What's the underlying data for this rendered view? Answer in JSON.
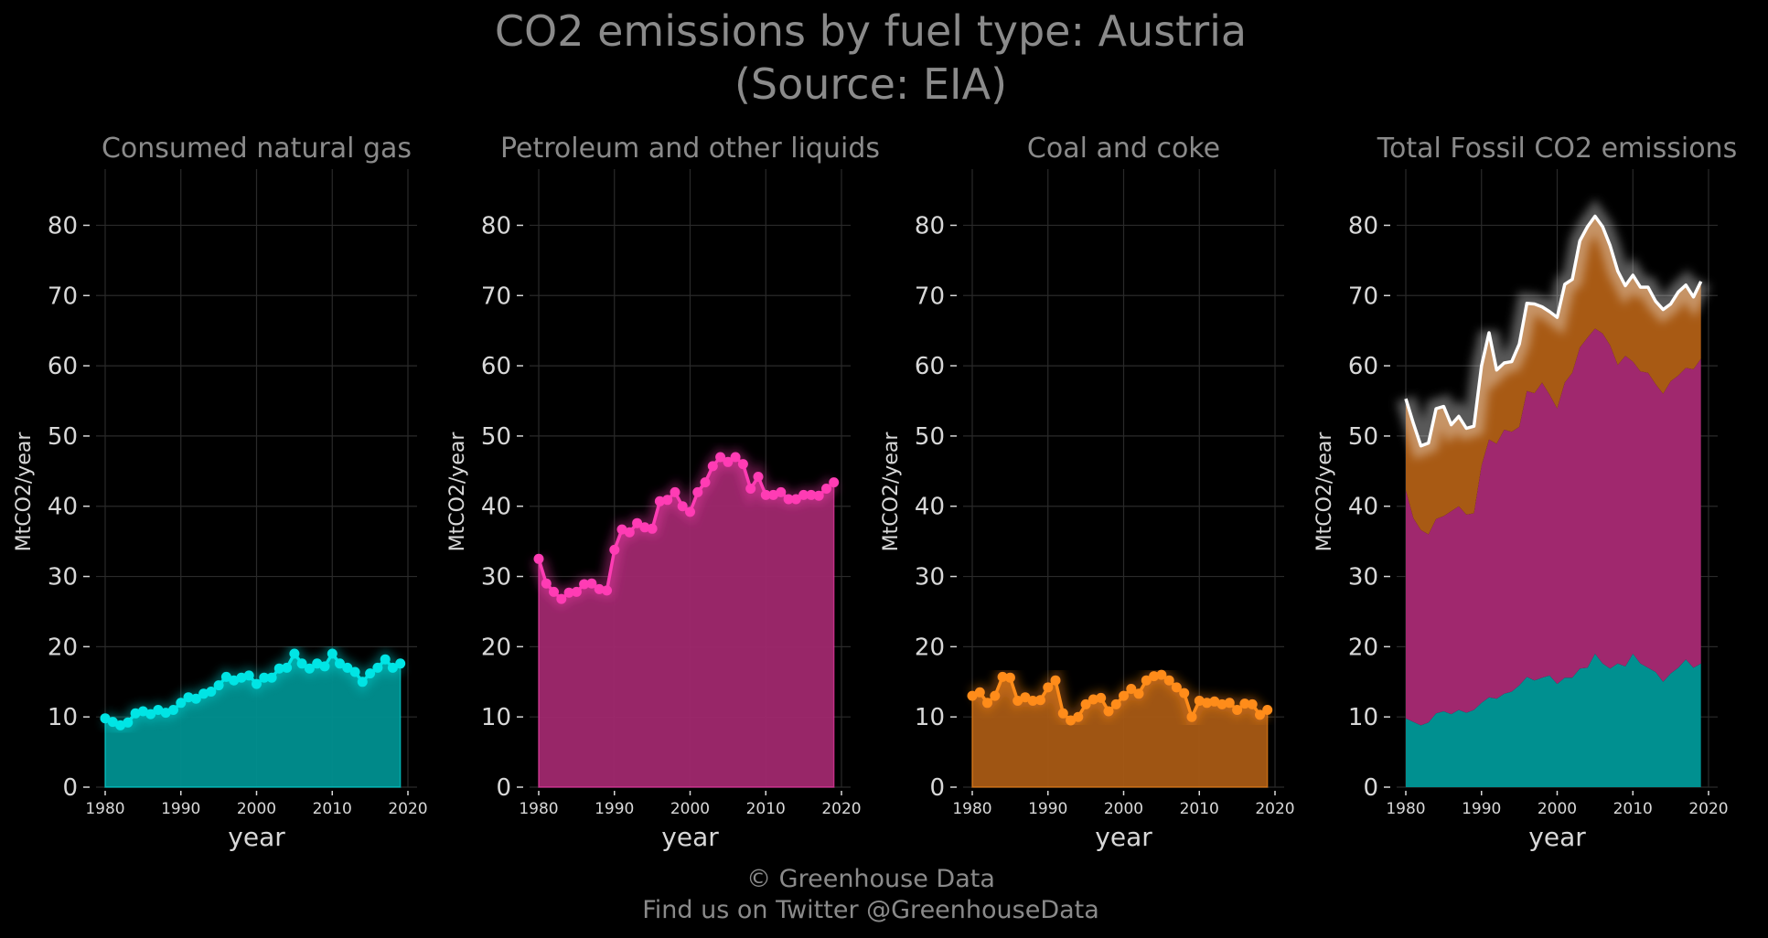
{
  "title_line1": "CO2 emissions by fuel type: Austria",
  "title_line2": "(Source: EIA)",
  "footer_line1": "© Greenhouse Data",
  "footer_line2": "Find us on Twitter @GreenhouseData",
  "colors": {
    "background": "#000000",
    "gas": "#00e5e5",
    "gas_fill": "#009090",
    "petroleum": "#ff3cb4",
    "petroleum_fill": "#a0286e",
    "coal": "#ff8c1a",
    "coal_fill": "#a85a14",
    "total_line": "#ffffff"
  },
  "chart_data": [
    {
      "type": "area",
      "title": "Consumed natural gas",
      "xlabel": "year",
      "ylabel": "MtCO2/year",
      "xlim": [
        1980,
        2020
      ],
      "ylim": [
        0,
        88
      ],
      "x_ticks": [
        1980,
        1990,
        2000,
        2010,
        2020
      ],
      "y_ticks": [
        0,
        10,
        20,
        30,
        40,
        50,
        60,
        70,
        80
      ],
      "grid": true,
      "series": [
        {
          "x": [
            1980,
            1981,
            1982,
            1983,
            1984,
            1985,
            1986,
            1987,
            1988,
            1989,
            1990,
            1991,
            1992,
            1993,
            1994,
            1995,
            1996,
            1997,
            1998,
            1999,
            2000,
            2001,
            2002,
            2003,
            2004,
            2005,
            2006,
            2007,
            2008,
            2009,
            2010,
            2011,
            2012,
            2013,
            2014,
            2015,
            2016,
            2017,
            2018,
            2019
          ],
          "values": [
            9.8,
            9.3,
            8.8,
            9.2,
            10.5,
            10.8,
            10.4,
            11.0,
            10.6,
            11.0,
            12.0,
            12.8,
            12.6,
            13.3,
            13.6,
            14.5,
            15.7,
            15.2,
            15.6,
            15.9,
            14.7,
            15.6,
            15.6,
            16.9,
            17.0,
            19.0,
            17.6,
            16.9,
            17.6,
            17.2,
            19.0,
            17.6,
            17.0,
            16.4,
            15.0,
            16.2,
            17.0,
            18.2,
            17.0,
            17.6
          ]
        }
      ]
    },
    {
      "type": "area",
      "title": "Petroleum and other liquids",
      "xlabel": "year",
      "ylabel": "MtCO2/year",
      "xlim": [
        1980,
        2020
      ],
      "ylim": [
        0,
        88
      ],
      "x_ticks": [
        1980,
        1990,
        2000,
        2010,
        2020
      ],
      "y_ticks": [
        0,
        10,
        20,
        30,
        40,
        50,
        60,
        70,
        80
      ],
      "grid": true,
      "series": [
        {
          "x": [
            1980,
            1981,
            1982,
            1983,
            1984,
            1985,
            1986,
            1987,
            1988,
            1989,
            1990,
            1991,
            1992,
            1993,
            1994,
            1995,
            1996,
            1997,
            1998,
            1999,
            2000,
            2001,
            2002,
            2003,
            2004,
            2005,
            2006,
            2007,
            2008,
            2009,
            2010,
            2011,
            2012,
            2013,
            2014,
            2015,
            2016,
            2017,
            2018,
            2019
          ],
          "values": [
            32.5,
            29.0,
            27.8,
            26.8,
            27.7,
            27.8,
            28.9,
            29.0,
            28.2,
            28.0,
            33.8,
            36.7,
            36.3,
            37.6,
            37.0,
            36.8,
            40.7,
            40.9,
            42.0,
            40.0,
            39.2,
            42.0,
            43.4,
            45.7,
            47.0,
            46.3,
            47.0,
            46.0,
            42.5,
            44.2,
            41.6,
            41.6,
            42.0,
            41.0,
            41.0,
            41.6,
            41.6,
            41.5,
            42.5,
            43.4
          ]
        }
      ]
    },
    {
      "type": "area",
      "title": "Coal and coke",
      "xlabel": "year",
      "ylabel": "MtCO2/year",
      "xlim": [
        1980,
        2020
      ],
      "ylim": [
        0,
        88
      ],
      "x_ticks": [
        1980,
        1990,
        2000,
        2010,
        2020
      ],
      "y_ticks": [
        0,
        10,
        20,
        30,
        40,
        50,
        60,
        70,
        80
      ],
      "grid": true,
      "series": [
        {
          "x": [
            1980,
            1981,
            1982,
            1983,
            1984,
            1985,
            1986,
            1987,
            1988,
            1989,
            1990,
            1991,
            1992,
            1993,
            1994,
            1995,
            1996,
            1997,
            1998,
            1999,
            2000,
            2001,
            2002,
            2003,
            2004,
            2005,
            2006,
            2007,
            2008,
            2009,
            2010,
            2011,
            2012,
            2013,
            2014,
            2015,
            2016,
            2017,
            2018,
            2019
          ],
          "values": [
            13.0,
            13.5,
            12.0,
            13.0,
            15.7,
            15.6,
            12.3,
            12.8,
            12.3,
            12.4,
            14.2,
            15.2,
            10.5,
            9.5,
            10.0,
            11.8,
            12.5,
            12.7,
            10.8,
            11.8,
            13.0,
            14.0,
            13.3,
            15.2,
            15.8,
            16.0,
            15.2,
            14.2,
            13.4,
            10.0,
            12.3,
            12.0,
            12.2,
            11.8,
            12.0,
            11.0,
            11.9,
            11.8,
            10.3,
            11.0
          ]
        }
      ]
    },
    {
      "type": "area",
      "title": "Total Fossil CO2 emissions",
      "xlabel": "year",
      "ylabel": "MtCO2/year",
      "xlim": [
        1980,
        2020
      ],
      "ylim": [
        0,
        88
      ],
      "x_ticks": [
        1980,
        1990,
        2000,
        2010,
        2020
      ],
      "y_ticks": [
        0,
        10,
        20,
        30,
        40,
        50,
        60,
        70,
        80
      ],
      "grid": true,
      "stacked": true,
      "x": [
        1980,
        1981,
        1982,
        1983,
        1984,
        1985,
        1986,
        1987,
        1988,
        1989,
        1990,
        1991,
        1992,
        1993,
        1994,
        1995,
        1996,
        1997,
        1998,
        1999,
        2000,
        2001,
        2002,
        2003,
        2004,
        2005,
        2006,
        2007,
        2008,
        2009,
        2010,
        2011,
        2012,
        2013,
        2014,
        2015,
        2016,
        2017,
        2018,
        2019
      ],
      "series": [
        {
          "values": [
            9.8,
            9.3,
            8.8,
            9.2,
            10.5,
            10.8,
            10.4,
            11.0,
            10.6,
            11.0,
            12.0,
            12.8,
            12.6,
            13.3,
            13.6,
            14.5,
            15.7,
            15.2,
            15.6,
            15.9,
            14.7,
            15.6,
            15.6,
            16.9,
            17.0,
            19.0,
            17.6,
            16.9,
            17.6,
            17.2,
            19.0,
            17.6,
            17.0,
            16.4,
            15.0,
            16.2,
            17.0,
            18.2,
            17.0,
            17.6
          ]
        },
        {
          "values": [
            32.5,
            29.0,
            27.8,
            26.8,
            27.7,
            27.8,
            28.9,
            29.0,
            28.2,
            28.0,
            33.8,
            36.7,
            36.3,
            37.6,
            37.0,
            36.8,
            40.7,
            40.9,
            42.0,
            40.0,
            39.2,
            42.0,
            43.4,
            45.7,
            47.0,
            46.3,
            47.0,
            46.0,
            42.5,
            44.2,
            41.6,
            41.6,
            42.0,
            41.0,
            41.0,
            41.6,
            41.6,
            41.5,
            42.5,
            43.4
          ]
        },
        {
          "values": [
            13.0,
            13.5,
            12.0,
            13.0,
            15.7,
            15.6,
            12.3,
            12.8,
            12.3,
            12.4,
            14.2,
            15.2,
            10.5,
            9.5,
            10.0,
            11.8,
            12.5,
            12.7,
            10.8,
            11.8,
            13.0,
            14.0,
            13.3,
            15.2,
            15.8,
            16.0,
            15.2,
            14.2,
            13.4,
            10.0,
            12.3,
            12.0,
            12.2,
            11.8,
            12.0,
            11.0,
            11.9,
            11.8,
            10.3,
            11.0
          ]
        }
      ],
      "total": [
        55.3,
        51.8,
        48.6,
        49.0,
        53.9,
        54.2,
        51.6,
        52.8,
        51.1,
        51.4,
        60.0,
        64.7,
        59.4,
        60.4,
        60.6,
        63.1,
        68.9,
        68.8,
        68.4,
        67.7,
        66.9,
        71.6,
        72.3,
        77.8,
        79.8,
        81.3,
        79.8,
        77.1,
        73.5,
        71.4,
        72.9,
        71.2,
        71.2,
        69.2,
        68.0,
        68.8,
        70.5,
        71.5,
        69.8,
        72.0
      ]
    }
  ]
}
